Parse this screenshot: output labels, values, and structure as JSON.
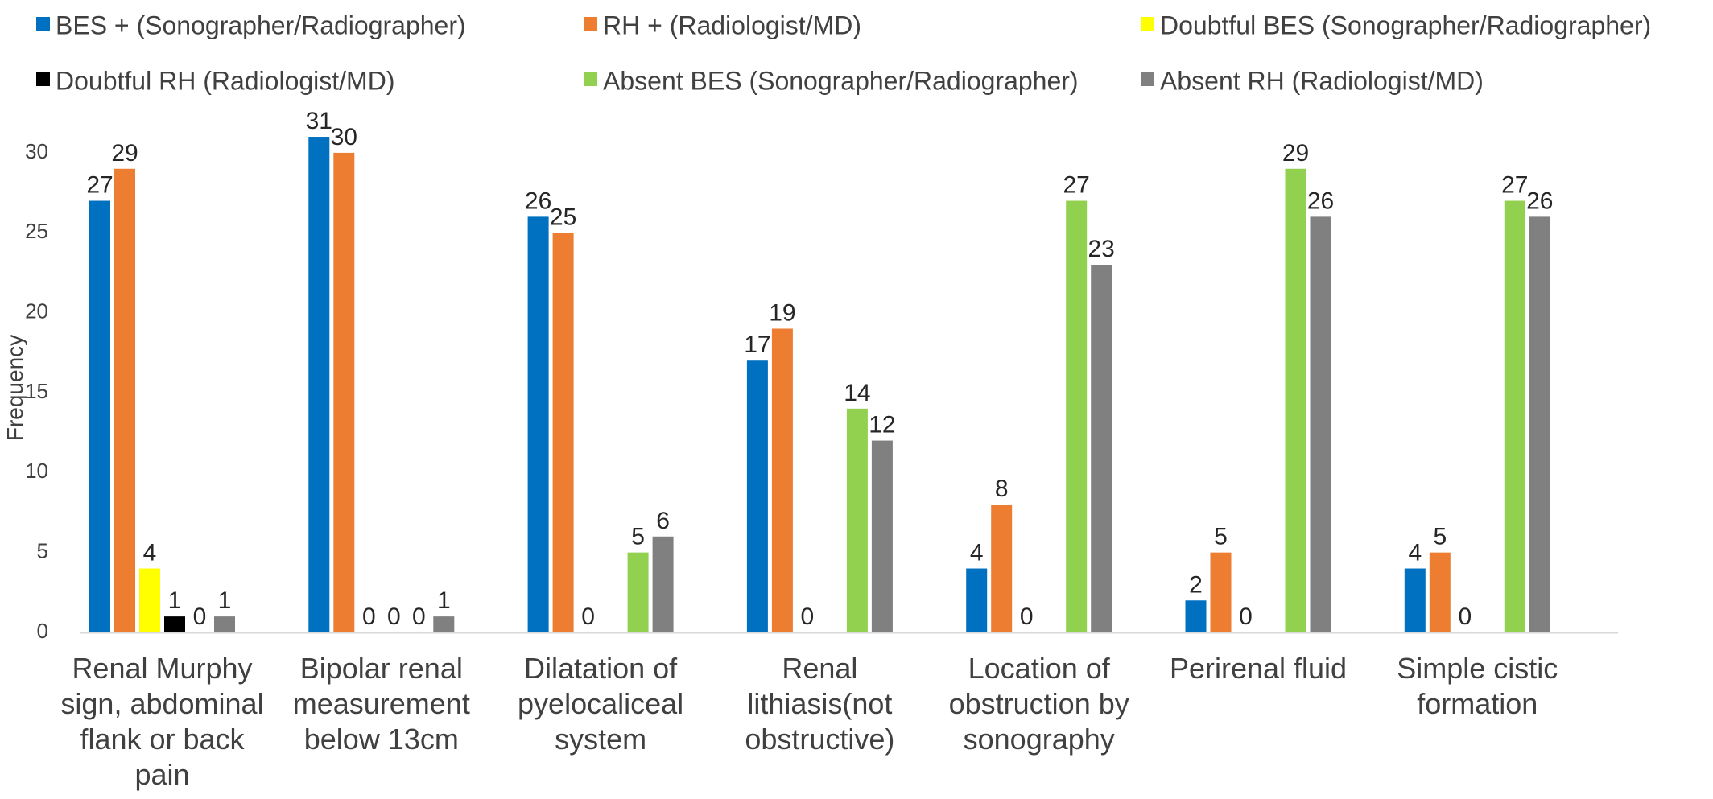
{
  "chart_data": {
    "type": "bar",
    "title": "",
    "xlabel": "",
    "ylabel": "Frequency",
    "ylim": [
      0,
      32
    ],
    "yticks": [
      0,
      5,
      10,
      15,
      20,
      25,
      30
    ],
    "grid": false,
    "legend_position": "top",
    "categories": [
      [
        "Renal Murphy",
        "sign, abdominal",
        "flank or back",
        "pain"
      ],
      [
        "Bipolar renal",
        "measurement",
        "below  13cm"
      ],
      [
        "Dilatation of",
        "pyelocaliceal",
        "system"
      ],
      [
        "Renal",
        "lithiasis(not",
        "obstructive)"
      ],
      [
        "Location of",
        "obstruction  by",
        "sonography"
      ],
      [
        "Perirenal fluid"
      ],
      [
        "Simple cistic",
        "formation"
      ]
    ],
    "series": [
      {
        "name": "BES + (Sonographer/Radiographer)",
        "color": "#0070C0",
        "values": [
          27,
          31,
          26,
          17,
          4,
          2,
          4
        ],
        "labels": [
          "27",
          "31",
          "26",
          "17",
          "4",
          "2",
          "4"
        ]
      },
      {
        "name": "RH + (Radiologist/MD)",
        "color": "#ED7D31",
        "values": [
          29,
          30,
          25,
          19,
          8,
          5,
          5
        ],
        "labels": [
          "29",
          "30",
          "25",
          "19",
          "8",
          "5",
          "5"
        ]
      },
      {
        "name": "Doubtful BES (Sonographer/Radiographer)",
        "color": "#FFFF00",
        "values": [
          4,
          0,
          0,
          0,
          0,
          0,
          0
        ],
        "labels": [
          "4",
          "0",
          "0",
          "0",
          "0",
          "0",
          "0"
        ]
      },
      {
        "name": "Doubtful RH   (Radiologist/MD)",
        "color": "#000000",
        "values": [
          1,
          0,
          null,
          null,
          null,
          null,
          null
        ],
        "labels": [
          "1",
          "0",
          "",
          "",
          "",
          "",
          ""
        ]
      },
      {
        "name": "Absent BES (Sonographer/Radiographer)",
        "color": "#92D050",
        "values": [
          0,
          0,
          5,
          14,
          27,
          29,
          27
        ],
        "labels": [
          "0",
          "0",
          "5",
          "14",
          "27",
          "29",
          "27"
        ]
      },
      {
        "name": "Absent RH (Radiologist/MD)",
        "color": "#808080",
        "values": [
          1,
          1,
          6,
          12,
          23,
          26,
          26
        ],
        "labels": [
          "1",
          "1",
          "6",
          "12",
          "23",
          "26",
          "26"
        ]
      }
    ]
  }
}
